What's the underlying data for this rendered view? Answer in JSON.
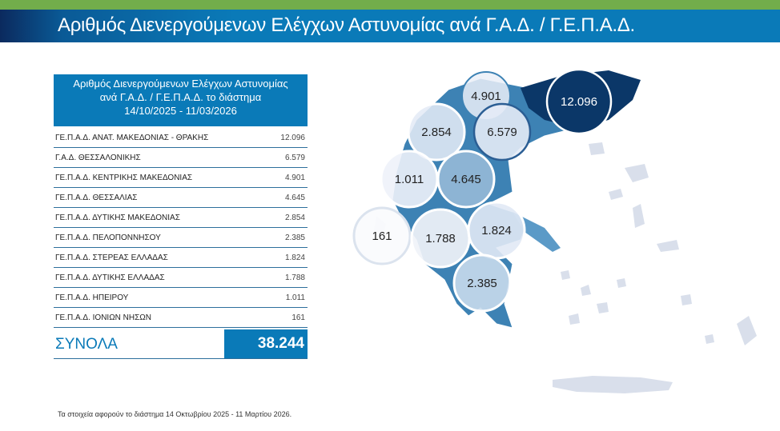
{
  "title": "Αριθμός Διενεργούμενων Ελέγχων Αστυνομίας ανά Γ.Α.Δ. / Γ.Ε.Π.Α.Δ.",
  "table": {
    "header": [
      "Αριθμός Διενεργούμενων Ελέγχων Αστυνομίας",
      "ανά Γ.Α.Δ. / Γ.Ε.Π.Α.Δ. το διάστημα",
      "14/10/2025 - 11/03/2026"
    ],
    "rows": [
      {
        "label": "ΓΕ.Π.Α.Δ. ΑΝΑΤ. ΜΑΚΕΔΟΝΙΑΣ - ΘΡΑΚΗΣ",
        "value": "12.096"
      },
      {
        "label": "Γ.Α.Δ. ΘΕΣΣΑΛΟΝΙΚΗΣ",
        "value": "6.579"
      },
      {
        "label": "ΓΕ.Π.Α.Δ. ΚΕΝΤΡΙΚΗΣ ΜΑΚΕΔΟΝΙΑΣ",
        "value": "4.901"
      },
      {
        "label": "ΓΕ.Π.Α.Δ. ΘΕΣΣΑΛΙΑΣ",
        "value": "4.645"
      },
      {
        "label": "ΓΕ.Π.Α.Δ. ΔΥΤΙΚΗΣ ΜΑΚΕΔΟΝΙΑΣ",
        "value": "2.854"
      },
      {
        "label": "ΓΕ.Π.Α.Δ. ΠΕΛΟΠΟΝΝΗΣΟΥ",
        "value": "2.385"
      },
      {
        "label": "ΓΕ.Π.Α.Δ. ΣΤΕΡΕΑΣ ΕΛΛΑΔΑΣ",
        "value": "1.824"
      },
      {
        "label": "ΓΕ.Π.Α.Δ. ΔΥΤΙΚΗΣ ΕΛΛΑΔΑΣ",
        "value": "1.788"
      },
      {
        "label": "ΓΕ.Π.Α.Δ. ΗΠΕΙΡΟΥ",
        "value": "1.011"
      },
      {
        "label": "ΓΕ.Π.Α.Δ. ΙΟΝΙΩΝ ΝΗΣΩΝ",
        "value": "161"
      }
    ],
    "total_label": "ΣΥΝΟΛΑ",
    "total_value": "38.244"
  },
  "map": {
    "bubbles": [
      "4.901",
      "12.096",
      "2.854",
      "6.579",
      "1.011",
      "4.645",
      "161",
      "1.788",
      "1.824",
      "2.385"
    ]
  },
  "footnote": "Τα στοιχεία αφορούν το διάστημα 14 Οκτωβρίου 2025 - 11 Μαρτίου 2026.",
  "colors": {
    "accent": "#0a7ab8",
    "green": "#72ad4b",
    "dark": "#0b3768"
  }
}
